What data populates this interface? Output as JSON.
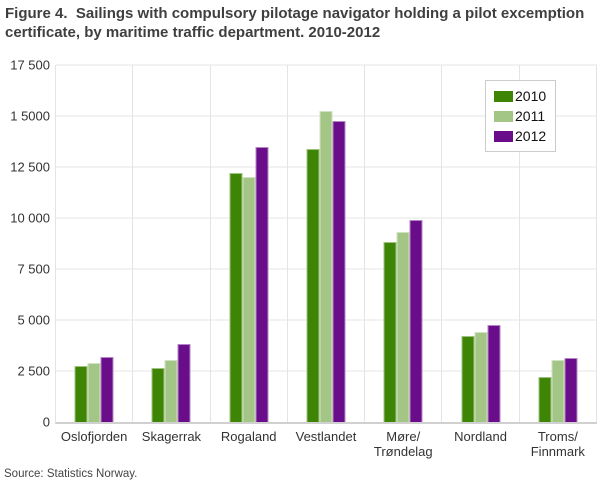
{
  "title": {
    "line1": "Figure 4.  Sailings with compulsory pilotage navigator holding a pilot excemption",
    "line2": "certificate, by maritime traffic department. 2010-2012"
  },
  "source": "Source: Statistics Norway.",
  "chart_data": {
    "type": "bar",
    "title": "Figure 4. Sailings with compulsory pilotage navigator holding a pilot excemption certificate, by maritime traffic department. 2010-2012",
    "categories": [
      "Oslofjorden",
      "Skagerrak",
      "Rogaland",
      "Vestlandet",
      "Møre/Trøndelag",
      "Nordland",
      "Troms/Finnmark"
    ],
    "series": [
      {
        "name": "2010",
        "color": "#3e8505",
        "values": [
          2750,
          2650,
          12200,
          13400,
          8800,
          4200,
          2200
        ]
      },
      {
        "name": "2011",
        "color": "#a3c585",
        "values": [
          2900,
          3050,
          12000,
          15250,
          9300,
          4400,
          3050
        ]
      },
      {
        "name": "2012",
        "color": "#6a0d8a",
        "values": [
          3200,
          3800,
          13500,
          14750,
          9900,
          4750,
          3150
        ]
      }
    ],
    "xlabel": "",
    "ylabel": "",
    "ylim": [
      0,
      17500
    ],
    "yticks": [
      {
        "value": 17500,
        "label": "17 500"
      },
      {
        "value": 15000,
        "label": "1 5000"
      },
      {
        "value": 12500,
        "label": "12 500"
      },
      {
        "value": 10000,
        "label": "10 000"
      },
      {
        "value": 7500,
        "label": "7 500"
      },
      {
        "value": 5000,
        "label": "5 000"
      },
      {
        "value": 2500,
        "label": "2 500"
      },
      {
        "value": 0,
        "label": "0"
      }
    ],
    "grid": true,
    "legend_position": "top-right"
  }
}
